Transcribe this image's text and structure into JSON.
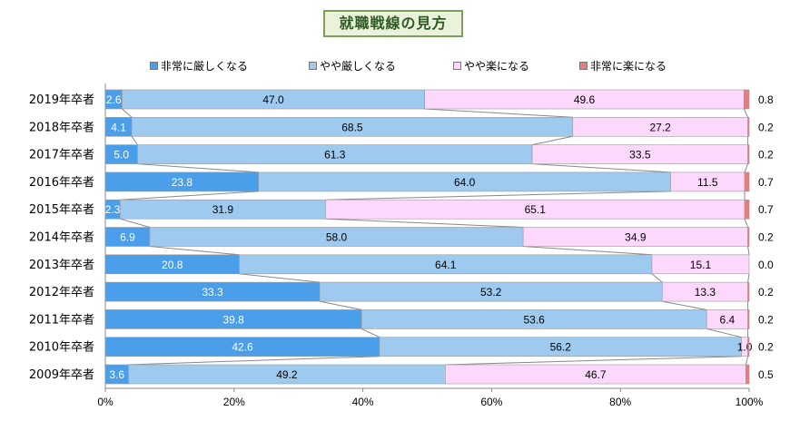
{
  "title": "就職戦線の見方",
  "chart_data": {
    "type": "bar",
    "stacked": true,
    "orientation": "horizontal",
    "categories": [
      "2019年卒者",
      "2018年卒者",
      "2017年卒者",
      "2016年卒者",
      "2015年卒者",
      "2014年卒者",
      "2013年卒者",
      "2012年卒者",
      "2011年卒者",
      "2010年卒者",
      "2009年卒者"
    ],
    "series": [
      {
        "name": "非常に厳しくなる",
        "color": "#4a9eea",
        "values": [
          2.6,
          4.1,
          5.0,
          23.8,
          2.3,
          6.9,
          20.8,
          33.3,
          39.8,
          42.6,
          3.6
        ]
      },
      {
        "name": "やや厳しくなる",
        "color": "#9fcaf0",
        "values": [
          47.0,
          68.5,
          61.3,
          64.0,
          31.9,
          58.0,
          64.1,
          53.2,
          53.6,
          56.2,
          49.2
        ]
      },
      {
        "name": "やや楽になる",
        "color": "#fcd9fc",
        "values": [
          49.6,
          27.2,
          33.5,
          11.5,
          65.1,
          34.9,
          15.1,
          13.3,
          6.4,
          1.0,
          46.7
        ]
      },
      {
        "name": "非常に楽になる",
        "color": "#e87b7b",
        "values": [
          0.8,
          0.2,
          0.2,
          0.7,
          0.7,
          0.2,
          0.0,
          0.2,
          0.2,
          0.2,
          0.5
        ]
      }
    ],
    "labels": [
      [
        "2.6",
        "47.0",
        "49.6",
        "0.8"
      ],
      [
        "4.1",
        "68.5",
        "27.2",
        "0.2"
      ],
      [
        "5.0",
        "61.3",
        "33.5",
        "0.2"
      ],
      [
        "23.8",
        "64.0",
        "11.5",
        "0.7"
      ],
      [
        "2.3",
        "31.9",
        "65.1",
        "0.7"
      ],
      [
        "6.9",
        "58.0",
        "34.9",
        "0.2"
      ],
      [
        "20.8",
        "64.1",
        "15.1",
        "0.0"
      ],
      [
        "33.3",
        "53.2",
        "13.3",
        "0.2"
      ],
      [
        "39.8",
        "53.6",
        "6.4",
        "0.2"
      ],
      [
        "42.6",
        "56.2",
        "1.0",
        "0.2"
      ],
      [
        "3.6",
        "49.2",
        "46.7",
        "0.5"
      ]
    ],
    "xticks": [
      "0%",
      "20%",
      "40%",
      "60%",
      "80%",
      "100%"
    ],
    "xlim": [
      0,
      100
    ],
    "legend_position": "top",
    "series_lines": true
  }
}
